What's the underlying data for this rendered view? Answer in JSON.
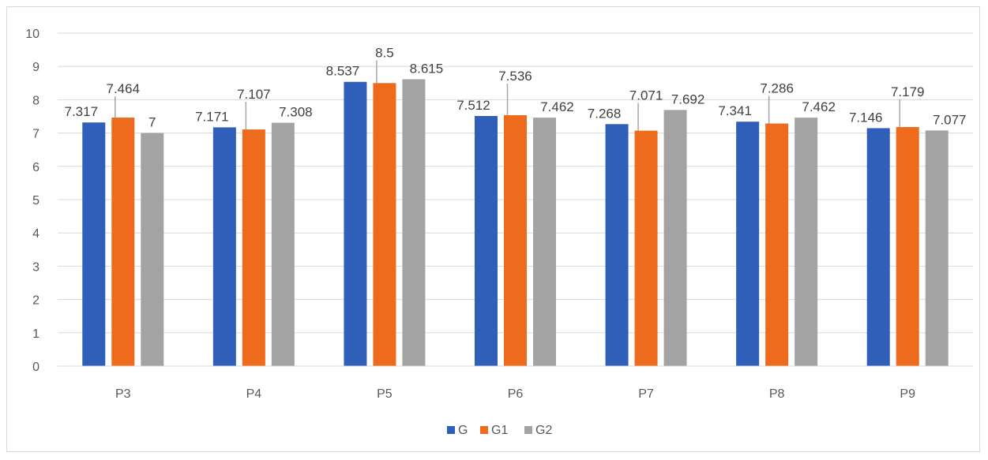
{
  "chart_data": {
    "type": "bar",
    "categories": [
      "P3",
      "P4",
      "P5",
      "P6",
      "P7",
      "P8",
      "P9"
    ],
    "series": [
      {
        "name": "G",
        "color": "#2f5fb8",
        "values": [
          7.317,
          7.171,
          8.537,
          7.512,
          7.268,
          7.341,
          7.146
        ]
      },
      {
        "name": "G1",
        "color": "#ee6a1c",
        "values": [
          7.464,
          7.107,
          8.5,
          7.536,
          7.071,
          7.286,
          7.179
        ]
      },
      {
        "name": "G2",
        "color": "#a3a3a3",
        "values": [
          7,
          7.308,
          8.615,
          7.462,
          7.692,
          7.462,
          7.077
        ]
      }
    ],
    "data_labels": [
      [
        "7.317",
        "7.171",
        "8.537",
        "7.512",
        "7.268",
        "7.341",
        "7.146"
      ],
      [
        "7.464",
        "7.107",
        "8.5",
        "7.536",
        "7.071",
        "7.286",
        "7.179"
      ],
      [
        "7",
        "7.308",
        "8.615",
        "7.462",
        "7.692",
        "7.462",
        "7.077"
      ]
    ],
    "yticks": [
      "0",
      "1",
      "2",
      "3",
      "4",
      "5",
      "6",
      "7",
      "8",
      "9",
      "10"
    ],
    "ylim": [
      0,
      10
    ],
    "grid": true,
    "legend": "bottom-center",
    "title": "",
    "xlabel": "",
    "ylabel": ""
  }
}
